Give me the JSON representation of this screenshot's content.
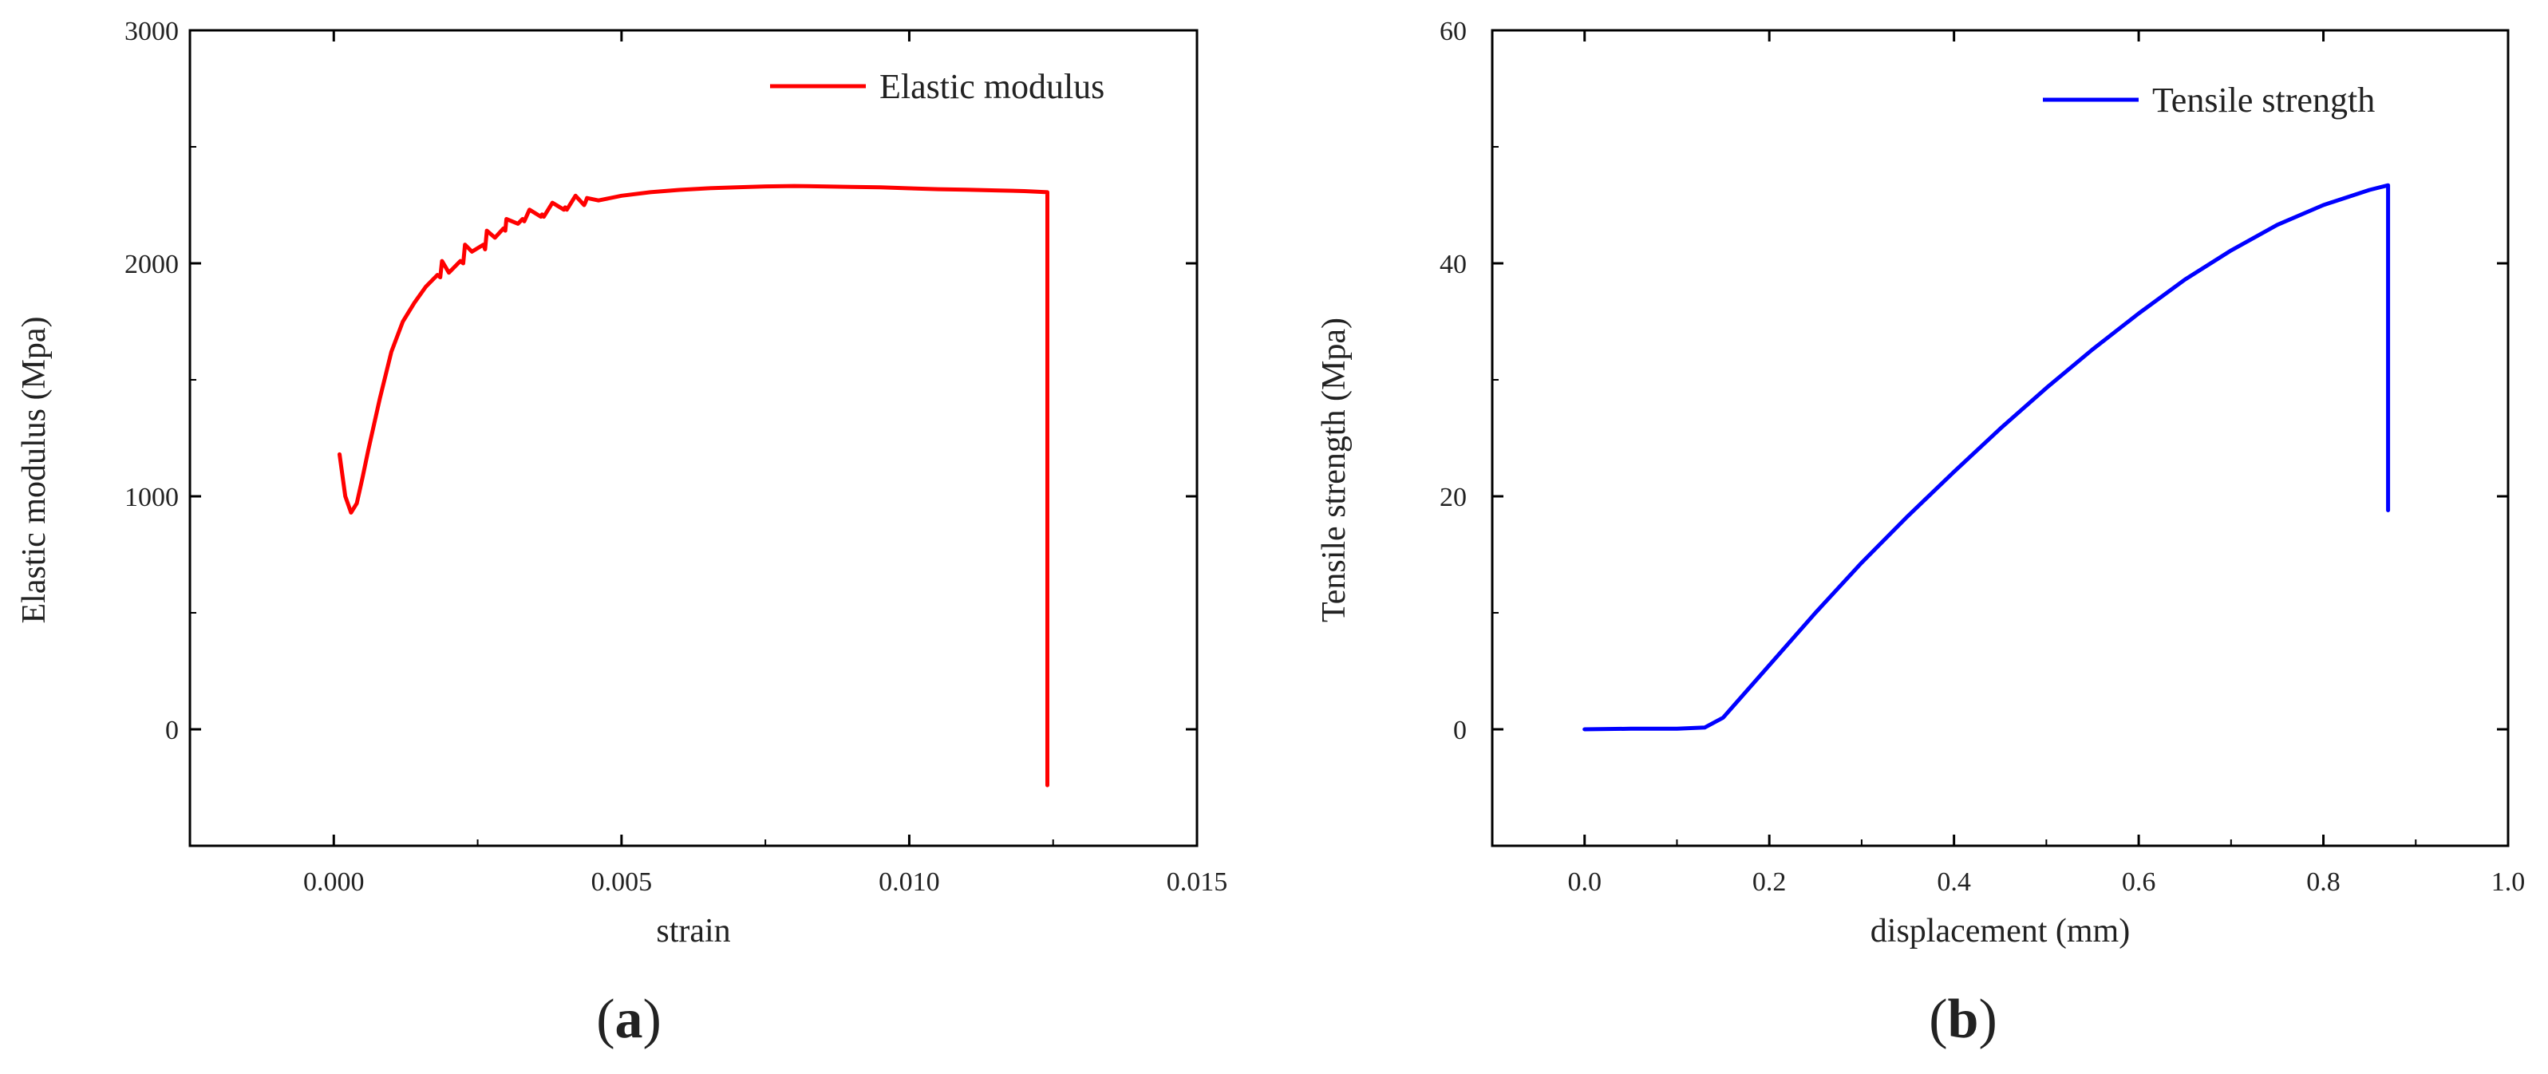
{
  "chart_data": [
    {
      "type": "line",
      "panel_label": {
        "open": "(",
        "letter": "a",
        "close": ")"
      },
      "xlabel": "strain",
      "ylabel": "Elastic modulus (Mpa)",
      "xlim": [
        -0.0025,
        0.015
      ],
      "ylim": [
        -500,
        3000
      ],
      "xticks": [
        0.0,
        0.005,
        0.01,
        0.015
      ],
      "xtick_labels": [
        "0.000",
        "0.005",
        "0.010",
        "0.015"
      ],
      "yticks": [
        0,
        1000,
        2000,
        3000
      ],
      "ytick_labels": [
        "0",
        "1000",
        "2000",
        "3000"
      ],
      "legend_position": "top-right",
      "series": [
        {
          "name": "Elastic modulus",
          "color": "#ff0000",
          "x": [
            0.0001,
            0.0002,
            0.0003,
            0.0004,
            0.0005,
            0.0006,
            0.0008,
            0.001,
            0.0012,
            0.0014,
            0.0016,
            0.0018,
            0.00185,
            0.00188,
            0.002,
            0.0022,
            0.00225,
            0.00228,
            0.0024,
            0.0026,
            0.00263,
            0.00266,
            0.0028,
            0.00295,
            0.00298,
            0.003,
            0.0032,
            0.00328,
            0.00331,
            0.0034,
            0.0036,
            0.00362,
            0.00365,
            0.0038,
            0.004,
            0.00402,
            0.00405,
            0.0042,
            0.00435,
            0.00437,
            0.0044,
            0.0046,
            0.005,
            0.0055,
            0.006,
            0.0065,
            0.007,
            0.0075,
            0.008,
            0.0085,
            0.009,
            0.0095,
            0.01,
            0.0105,
            0.011,
            0.0115,
            0.012,
            0.0124,
            0.0124
          ],
          "y": [
            1180,
            1000,
            930,
            970,
            1080,
            1200,
            1420,
            1620,
            1750,
            1830,
            1900,
            1950,
            1940,
            2010,
            1960,
            2010,
            2000,
            2080,
            2050,
            2080,
            2060,
            2140,
            2110,
            2150,
            2140,
            2190,
            2170,
            2190,
            2180,
            2230,
            2200,
            2210,
            2200,
            2260,
            2230,
            2240,
            2230,
            2290,
            2250,
            2260,
            2280,
            2270,
            2290,
            2305,
            2315,
            2322,
            2326,
            2330,
            2332,
            2330,
            2328,
            2326,
            2322,
            2318,
            2316,
            2313,
            2310,
            2305,
            -240
          ]
        }
      ]
    },
    {
      "type": "line",
      "panel_label": {
        "open": "(",
        "letter": "b",
        "close": ")"
      },
      "xlabel": "displacement (mm)",
      "ylabel": "Tensile strength (Mpa)",
      "xlim": [
        -0.1,
        1.0
      ],
      "ylim": [
        -10,
        60
      ],
      "xticks": [
        0.0,
        0.2,
        0.4,
        0.6,
        0.8,
        1.0
      ],
      "xtick_labels": [
        "0.0",
        "0.2",
        "0.4",
        "0.6",
        "0.8",
        "1.0"
      ],
      "yticks": [
        0,
        20,
        40,
        60
      ],
      "ytick_labels": [
        "0",
        "20",
        "40",
        "60"
      ],
      "legend_position": "top-right",
      "series": [
        {
          "name": "Tensile strength",
          "color": "#0000ff",
          "x": [
            0.0,
            0.05,
            0.1,
            0.13,
            0.15,
            0.2,
            0.25,
            0.3,
            0.35,
            0.4,
            0.45,
            0.5,
            0.55,
            0.6,
            0.65,
            0.7,
            0.75,
            0.8,
            0.85,
            0.87,
            0.87
          ],
          "y": [
            0.0,
            0.05,
            0.05,
            0.15,
            1.0,
            5.5,
            10.0,
            14.3,
            18.3,
            22.1,
            25.8,
            29.3,
            32.6,
            35.7,
            38.6,
            41.1,
            43.3,
            45.0,
            46.3,
            46.7,
            18.8
          ]
        }
      ]
    }
  ]
}
